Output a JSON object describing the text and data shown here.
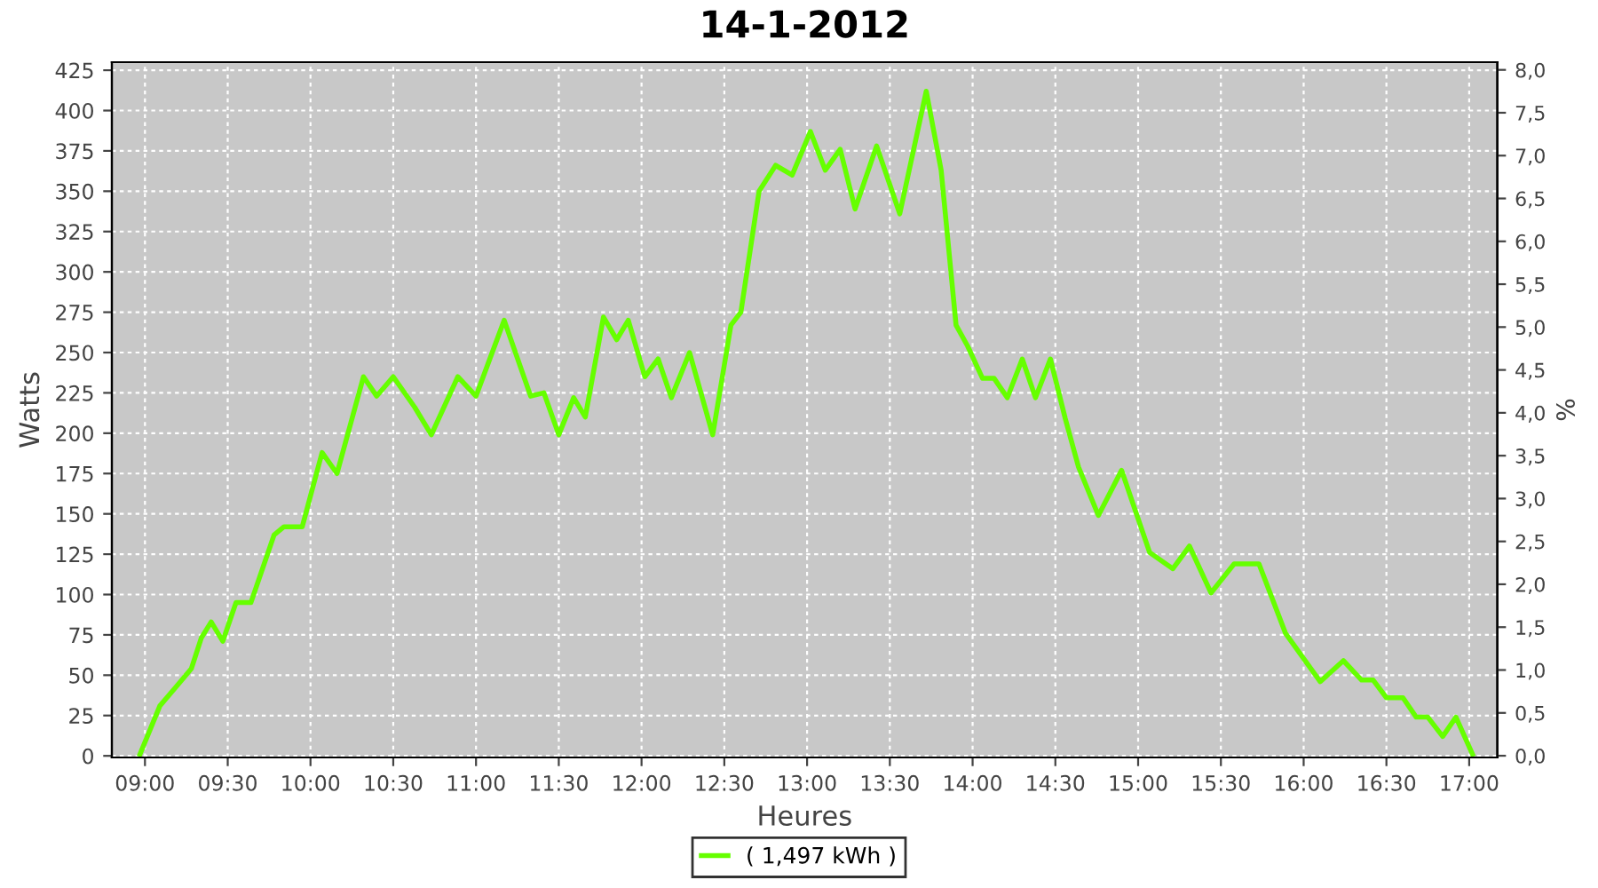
{
  "chart_data": {
    "type": "line",
    "title": "14-1-2012",
    "xlabel": "Heures",
    "ylabel": "Watts",
    "y2label": "%",
    "x": [
      8.97,
      9.09,
      9.19,
      9.28,
      9.34,
      9.4,
      9.47,
      9.55,
      9.64,
      9.78,
      9.84,
      9.95,
      10.07,
      10.16,
      10.32,
      10.4,
      10.5,
      10.63,
      10.73,
      10.89,
      11.0,
      11.17,
      11.33,
      11.41,
      11.5,
      11.59,
      11.66,
      11.77,
      11.85,
      11.92,
      12.02,
      12.1,
      12.18,
      12.29,
      12.43,
      12.54,
      12.6,
      12.71,
      12.81,
      12.91,
      13.02,
      13.11,
      13.2,
      13.29,
      13.42,
      13.56,
      13.72,
      13.81,
      13.9,
      13.97,
      14.06,
      14.13,
      14.21,
      14.3,
      14.38,
      14.47,
      14.56,
      14.64,
      14.76,
      14.9,
      15.07,
      15.21,
      15.31,
      15.44,
      15.58,
      15.73,
      15.89,
      16.1,
      16.24,
      16.35,
      16.42,
      16.5,
      16.6,
      16.68,
      16.75,
      16.84,
      16.92,
      17.02
    ],
    "series": [
      {
        "name": "( 1,497 kWh )",
        "color": "#66ff00",
        "values": [
          1,
          31,
          43,
          54,
          73,
          83,
          71,
          95,
          95,
          137,
          142,
          142,
          188,
          175,
          235,
          223,
          235,
          216,
          199,
          235,
          223,
          270,
          223,
          225,
          199,
          222,
          210,
          272,
          258,
          270,
          235,
          246,
          222,
          250,
          199,
          267,
          275,
          350,
          366,
          360,
          387,
          363,
          376,
          339,
          378,
          336,
          412,
          363,
          267,
          254,
          234,
          234,
          222,
          246,
          222,
          246,
          209,
          179,
          149,
          177,
          126,
          116,
          130,
          101,
          119,
          119,
          76,
          46,
          59,
          47,
          47,
          36,
          36,
          24,
          24,
          12,
          24,
          1
        ]
      }
    ],
    "xlim": [
      8.8,
      17.17
    ],
    "xticks": [
      {
        "value": 9,
        "label": "09:00"
      },
      {
        "value": 9.5,
        "label": "09:30"
      },
      {
        "value": 10,
        "label": "10:00"
      },
      {
        "value": 10.5,
        "label": "10:30"
      },
      {
        "value": 11,
        "label": "11:00"
      },
      {
        "value": 11.5,
        "label": "11:30"
      },
      {
        "value": 12,
        "label": "12:00"
      },
      {
        "value": 12.5,
        "label": "12:30"
      },
      {
        "value": 13,
        "label": "13:00"
      },
      {
        "value": 13.5,
        "label": "13:30"
      },
      {
        "value": 14,
        "label": "14:00"
      },
      {
        "value": 14.5,
        "label": "14:30"
      },
      {
        "value": 15,
        "label": "15:00"
      },
      {
        "value": 15.5,
        "label": "15:30"
      },
      {
        "value": 16,
        "label": "16:00"
      },
      {
        "value": 16.5,
        "label": "16:30"
      },
      {
        "value": 17,
        "label": "17:00"
      }
    ],
    "ylim": [
      -1,
      430
    ],
    "yticks": [
      0,
      25,
      50,
      75,
      100,
      125,
      150,
      175,
      200,
      225,
      250,
      275,
      300,
      325,
      350,
      375,
      400,
      425
    ],
    "y2lim": [
      -0.02,
      8.09
    ],
    "y2ticks": [
      {
        "value": 0,
        "label": "0,0"
      },
      {
        "value": 0.5,
        "label": "0,5"
      },
      {
        "value": 1,
        "label": "1,0"
      },
      {
        "value": 1.5,
        "label": "1,5"
      },
      {
        "value": 2,
        "label": "2,0"
      },
      {
        "value": 2.5,
        "label": "2,5"
      },
      {
        "value": 3,
        "label": "3,0"
      },
      {
        "value": 3.5,
        "label": "3,5"
      },
      {
        "value": 4,
        "label": "4,0"
      },
      {
        "value": 4.5,
        "label": "4,5"
      },
      {
        "value": 5,
        "label": "5,0"
      },
      {
        "value": 5.5,
        "label": "5,5"
      },
      {
        "value": 6,
        "label": "6,0"
      },
      {
        "value": 6.5,
        "label": "6,5"
      },
      {
        "value": 7,
        "label": "7,0"
      },
      {
        "value": 7.5,
        "label": "7,5"
      },
      {
        "value": 8,
        "label": "8,0"
      }
    ],
    "grid": true,
    "legend": "bottom",
    "marker": "none",
    "line_style": "solid"
  }
}
